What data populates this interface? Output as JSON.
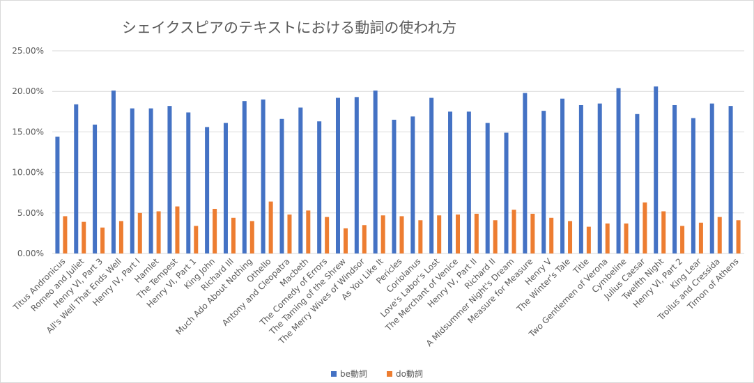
{
  "chart_data": {
    "type": "bar",
    "title": "シェイクスピアのテキストにおける動詞の使われ方",
    "xlabel": "",
    "ylabel": "",
    "ylim": [
      0,
      0.25
    ],
    "yticks": [
      "0.00%",
      "5.00%",
      "10.00%",
      "15.00%",
      "20.00%",
      "25.00%"
    ],
    "grid": true,
    "legend_position": "bottom",
    "categories": [
      "Titus Andronicus",
      "Romeo and Juliet",
      "Henry VI, Part 3",
      "All's Well That Ends Well",
      "Henry IV, Part I",
      "Hamlet",
      "The Tempest",
      "Henry VI, Part 1",
      "King John",
      "Richard III",
      "Much Ado About Nothing",
      "Othello",
      "Antony and Cleopatra",
      "Macbeth",
      "The Comedy of Errors",
      "The Taming of the Shrew",
      "The Merry Wives of Windsor",
      "As You Like It",
      "Pericles",
      "Coriolanus",
      "Love's Labor's Lost",
      "The Merchant of Venice",
      "Henry IV, Part II",
      "Richard II",
      "A Midsummer Night's Dream",
      "Measure for Measure",
      "Henry V",
      "The Winter's Tale",
      "Title",
      "Two Gentlemen of Verona",
      "Cymbeline",
      "Julius Caesar",
      "Twelfth Night",
      "Henry VI, Part 2",
      "King Lear",
      "Troilus and Cressida",
      "Timon of Athens"
    ],
    "series": [
      {
        "name": "be動詞",
        "color": "#4472c4",
        "values": [
          0.144,
          0.184,
          0.159,
          0.201,
          0.179,
          0.179,
          0.182,
          0.174,
          0.156,
          0.161,
          0.188,
          0.19,
          0.166,
          0.18,
          0.163,
          0.192,
          0.193,
          0.201,
          0.165,
          0.169,
          0.192,
          0.175,
          0.175,
          0.161,
          0.149,
          0.198,
          0.176,
          0.191,
          0.183,
          0.185,
          0.204,
          0.172,
          0.206,
          0.183,
          0.167,
          0.185,
          0.182
        ]
      },
      {
        "name": "do動詞",
        "color": "#ed7d31",
        "values": [
          0.046,
          0.039,
          0.032,
          0.04,
          0.05,
          0.052,
          0.058,
          0.034,
          0.055,
          0.044,
          0.04,
          0.064,
          0.048,
          0.053,
          0.045,
          0.031,
          0.035,
          0.047,
          0.046,
          0.041,
          0.047,
          0.048,
          0.049,
          0.041,
          0.054,
          0.049,
          0.044,
          0.04,
          0.033,
          0.037,
          0.037,
          0.063,
          0.052,
          0.034,
          0.038,
          0.045,
          0.041
        ]
      }
    ]
  }
}
